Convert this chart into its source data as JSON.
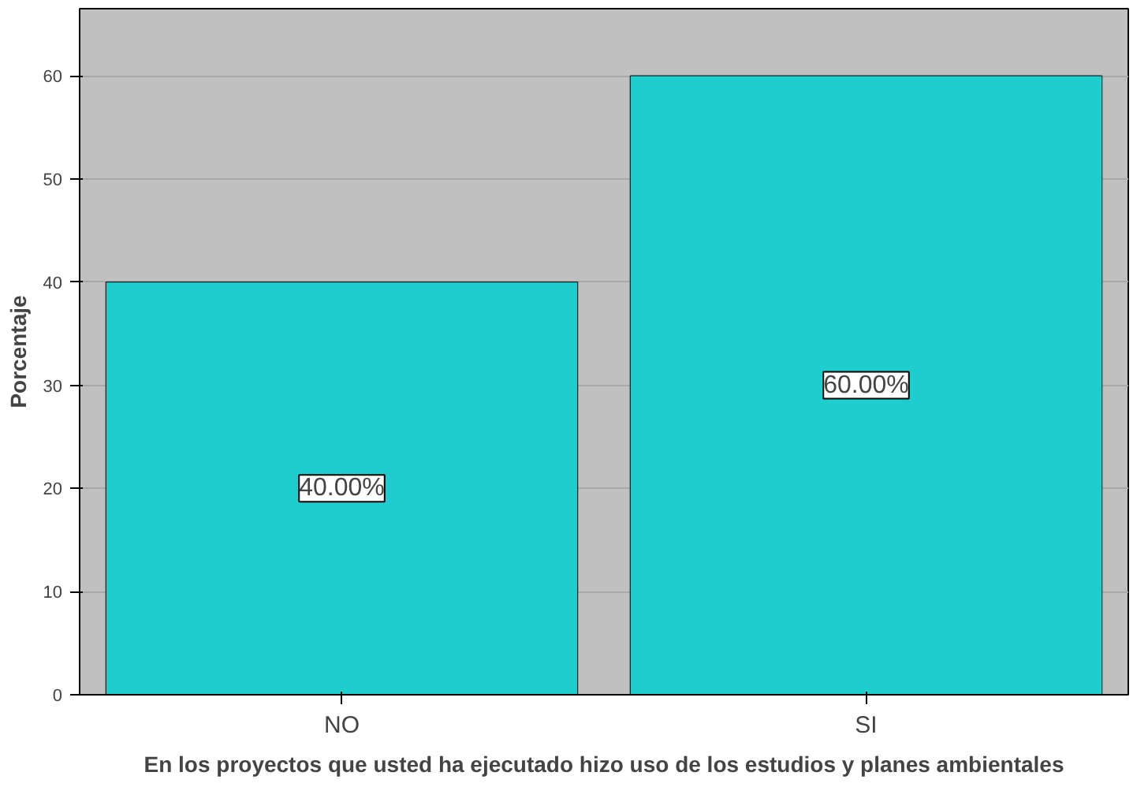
{
  "chart_data": {
    "type": "bar",
    "xlabel": "En los proyectos que usted ha ejecutado hizo uso de los estudios y planes ambientales",
    "ylabel": "Porcentaje",
    "categories": [
      "NO",
      "SI"
    ],
    "values": [
      40,
      60
    ],
    "value_labels": [
      "40.00%",
      "60.00%"
    ],
    "color": "#1ecece",
    "ylim": [
      0,
      66.5
    ],
    "yticks": [
      0,
      10,
      20,
      30,
      40,
      50,
      60
    ],
    "grid": "y"
  }
}
